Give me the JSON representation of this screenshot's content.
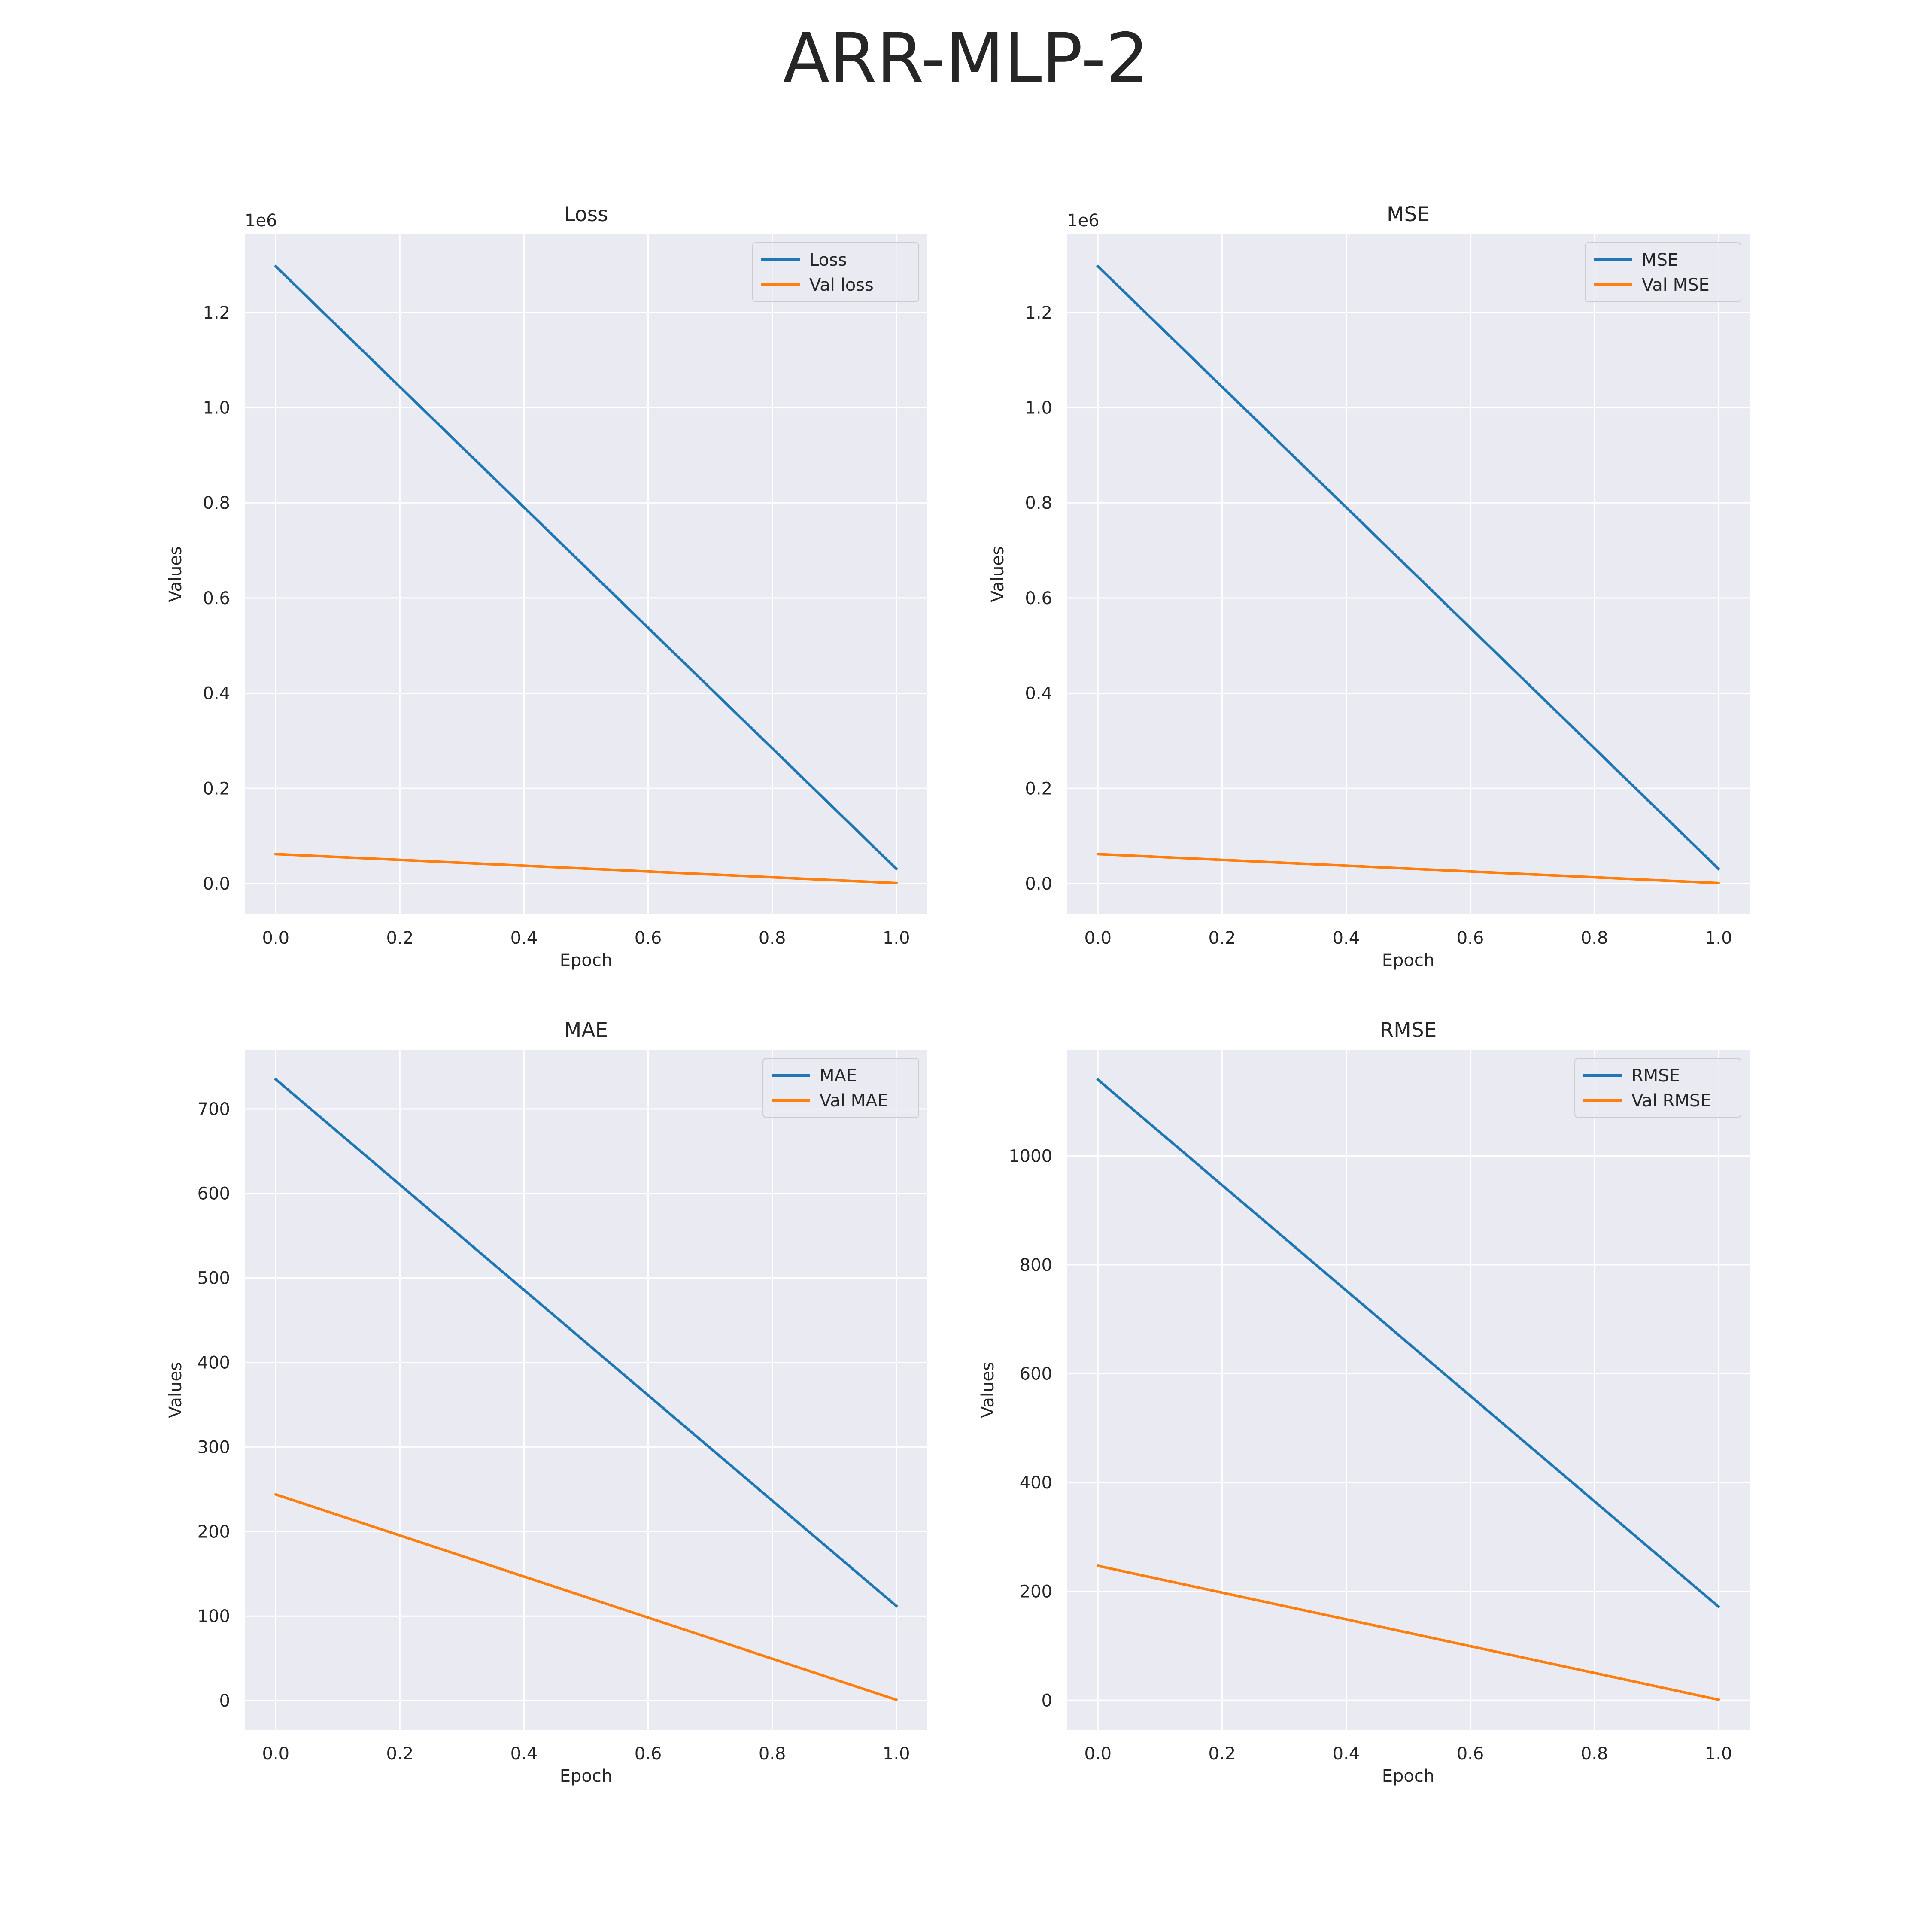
{
  "figure": {
    "title": "ARR-MLP-2"
  },
  "chart_data": [
    {
      "type": "line",
      "title": "Loss",
      "xlabel": "Epoch",
      "ylabel": "Values",
      "offset_text": "1e6",
      "xlim": [
        -0.05,
        1.05
      ],
      "ylim": [
        -65000,
        1365000
      ],
      "xticks": [
        0.0,
        0.2,
        0.4,
        0.6,
        0.8,
        1.0
      ],
      "xtick_labels": [
        "0.0",
        "0.2",
        "0.4",
        "0.6",
        "0.8",
        "1.0"
      ],
      "yticks": [
        0,
        200000,
        400000,
        600000,
        800000,
        1000000,
        1200000
      ],
      "ytick_labels": [
        "0.0",
        "0.2",
        "0.4",
        "0.6",
        "0.8",
        "1.0",
        "1.2"
      ],
      "grid": true,
      "legend": "upper right",
      "series": [
        {
          "name": "Loss",
          "color": "#1f77b4",
          "x": [
            0,
            1
          ],
          "y": [
            1297000,
            31000
          ]
        },
        {
          "name": "Val loss",
          "color": "#ff7f0e",
          "x": [
            0,
            1
          ],
          "y": [
            62000,
            1000
          ]
        }
      ]
    },
    {
      "type": "line",
      "title": "MSE",
      "xlabel": "Epoch",
      "ylabel": "Values",
      "offset_text": "1e6",
      "xlim": [
        -0.05,
        1.05
      ],
      "ylim": [
        -65000,
        1365000
      ],
      "xticks": [
        0.0,
        0.2,
        0.4,
        0.6,
        0.8,
        1.0
      ],
      "xtick_labels": [
        "0.0",
        "0.2",
        "0.4",
        "0.6",
        "0.8",
        "1.0"
      ],
      "yticks": [
        0,
        200000,
        400000,
        600000,
        800000,
        1000000,
        1200000
      ],
      "ytick_labels": [
        "0.0",
        "0.2",
        "0.4",
        "0.6",
        "0.8",
        "1.0",
        "1.2"
      ],
      "grid": true,
      "legend": "upper right",
      "series": [
        {
          "name": "MSE",
          "color": "#1f77b4",
          "x": [
            0,
            1
          ],
          "y": [
            1297000,
            31000
          ]
        },
        {
          "name": "Val MSE",
          "color": "#ff7f0e",
          "x": [
            0,
            1
          ],
          "y": [
            62000,
            1000
          ]
        }
      ]
    },
    {
      "type": "line",
      "title": "MAE",
      "xlabel": "Epoch",
      "ylabel": "Values",
      "offset_text": "",
      "xlim": [
        -0.05,
        1.05
      ],
      "ylim": [
        -35,
        770
      ],
      "xticks": [
        0.0,
        0.2,
        0.4,
        0.6,
        0.8,
        1.0
      ],
      "xtick_labels": [
        "0.0",
        "0.2",
        "0.4",
        "0.6",
        "0.8",
        "1.0"
      ],
      "yticks": [
        0,
        100,
        200,
        300,
        400,
        500,
        600,
        700
      ],
      "ytick_labels": [
        "0",
        "100",
        "200",
        "300",
        "400",
        "500",
        "600",
        "700"
      ],
      "grid": true,
      "legend": "upper right",
      "series": [
        {
          "name": "MAE",
          "color": "#1f77b4",
          "x": [
            0,
            1
          ],
          "y": [
            735,
            112
          ]
        },
        {
          "name": "Val MAE",
          "color": "#ff7f0e",
          "x": [
            0,
            1
          ],
          "y": [
            244,
            1
          ]
        }
      ]
    },
    {
      "type": "line",
      "title": "RMSE",
      "xlabel": "Epoch",
      "ylabel": "Values",
      "offset_text": "",
      "xlim": [
        -0.05,
        1.05
      ],
      "ylim": [
        -55,
        1195
      ],
      "xticks": [
        0.0,
        0.2,
        0.4,
        0.6,
        0.8,
        1.0
      ],
      "xtick_labels": [
        "0.0",
        "0.2",
        "0.4",
        "0.6",
        "0.8",
        "1.0"
      ],
      "yticks": [
        0,
        200,
        400,
        600,
        800,
        1000
      ],
      "ytick_labels": [
        "0",
        "200",
        "400",
        "600",
        "800",
        "1000"
      ],
      "grid": true,
      "legend": "upper right",
      "series": [
        {
          "name": "RMSE",
          "color": "#1f77b4",
          "x": [
            0,
            1
          ],
          "y": [
            1140,
            172
          ]
        },
        {
          "name": "Val RMSE",
          "color": "#ff7f0e",
          "x": [
            0,
            1
          ],
          "y": [
            247,
            1
          ]
        }
      ]
    }
  ]
}
